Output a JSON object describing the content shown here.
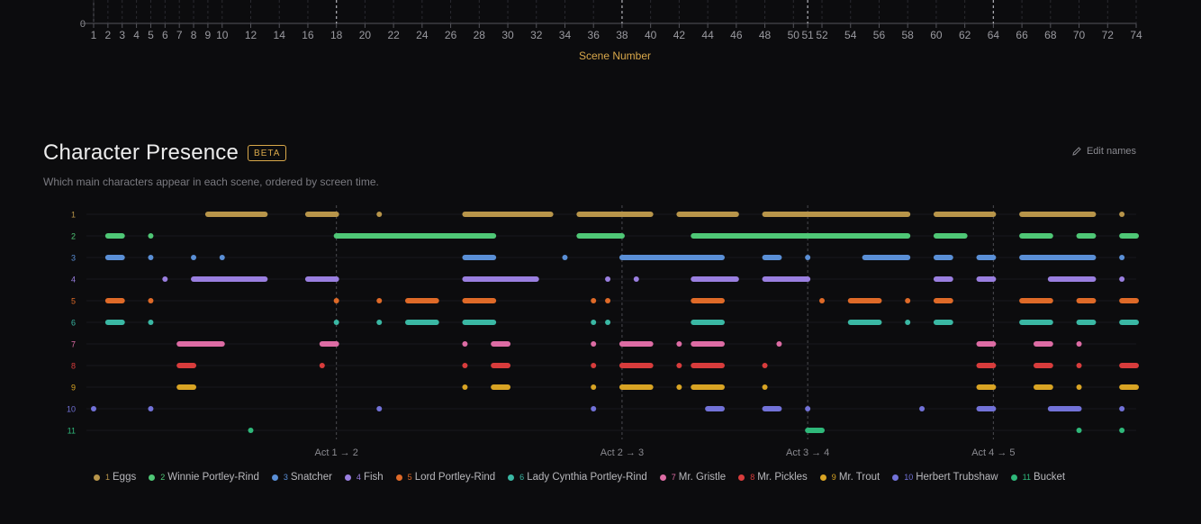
{
  "top_axis": {
    "xlabel": "Scene Number",
    "y_tick": "0",
    "ticks": [
      1,
      2,
      3,
      4,
      5,
      6,
      7,
      8,
      9,
      10,
      12,
      14,
      16,
      18,
      20,
      22,
      24,
      26,
      28,
      30,
      32,
      34,
      36,
      38,
      40,
      42,
      44,
      46,
      48,
      50,
      51,
      52,
      54,
      56,
      58,
      60,
      62,
      64,
      66,
      68,
      70,
      72,
      74
    ],
    "act_breaks": [
      18,
      38,
      51,
      64
    ]
  },
  "presence": {
    "title": "Character Presence",
    "badge": "BETA",
    "subtitle": "Which main characters appear in each scene, ordered by screen time.",
    "edit_label": "Edit names"
  },
  "chart_data": {
    "type": "scatter",
    "xlim": [
      1,
      74
    ],
    "act_breaks": [
      {
        "scene": 18,
        "label": "Act 1 → 2"
      },
      {
        "scene": 38,
        "label": "Act 2 → 3"
      },
      {
        "scene": 51,
        "label": "Act 3 → 4"
      },
      {
        "scene": 64,
        "label": "Act 4 → 5"
      }
    ],
    "series": [
      {
        "rank": 1,
        "name": "Eggs",
        "color": "#b8954a",
        "segments": [
          [
            9,
            13
          ],
          [
            16,
            18
          ],
          [
            21,
            21
          ],
          [
            27,
            33
          ],
          [
            35,
            40
          ],
          [
            42,
            46
          ],
          [
            48,
            58
          ],
          [
            60,
            64
          ],
          [
            66,
            71
          ],
          [
            73,
            73
          ]
        ]
      },
      {
        "rank": 2,
        "name": "Winnie Portley-Rind",
        "color": "#4fc776",
        "segments": [
          [
            2,
            3
          ],
          [
            5,
            5
          ],
          [
            18,
            29
          ],
          [
            35,
            38
          ],
          [
            43,
            58
          ],
          [
            60,
            62
          ],
          [
            66,
            68
          ],
          [
            70,
            71
          ],
          [
            73,
            74
          ]
        ]
      },
      {
        "rank": 3,
        "name": "Snatcher",
        "color": "#5a8fd6",
        "segments": [
          [
            2,
            3
          ],
          [
            5,
            5
          ],
          [
            8,
            8
          ],
          [
            10,
            10
          ],
          [
            27,
            29
          ],
          [
            34,
            34
          ],
          [
            38,
            45
          ],
          [
            48,
            49
          ],
          [
            51,
            51
          ],
          [
            55,
            58
          ],
          [
            60,
            61
          ],
          [
            63,
            64
          ],
          [
            66,
            71
          ],
          [
            73,
            73
          ]
        ]
      },
      {
        "rank": 4,
        "name": "Fish",
        "color": "#9a7fe0",
        "segments": [
          [
            6,
            6
          ],
          [
            8,
            13
          ],
          [
            16,
            18
          ],
          [
            27,
            32
          ],
          [
            37,
            37
          ],
          [
            39,
            39
          ],
          [
            43,
            46
          ],
          [
            48,
            51
          ],
          [
            60,
            61
          ],
          [
            63,
            64
          ],
          [
            68,
            71
          ],
          [
            73,
            73
          ]
        ]
      },
      {
        "rank": 5,
        "name": "Lord Portley-Rind",
        "color": "#df6a28",
        "segments": [
          [
            2,
            3
          ],
          [
            5,
            5
          ],
          [
            18,
            18
          ],
          [
            21,
            21
          ],
          [
            23,
            25
          ],
          [
            27,
            29
          ],
          [
            36,
            36
          ],
          [
            37,
            37
          ],
          [
            43,
            45
          ],
          [
            52,
            52
          ],
          [
            54,
            56
          ],
          [
            58,
            58
          ],
          [
            60,
            61
          ],
          [
            66,
            68
          ],
          [
            70,
            71
          ],
          [
            73,
            74
          ]
        ]
      },
      {
        "rank": 6,
        "name": "Lady Cynthia Portley-Rind",
        "color": "#3ab8a4",
        "segments": [
          [
            2,
            3
          ],
          [
            5,
            5
          ],
          [
            18,
            18
          ],
          [
            21,
            21
          ],
          [
            23,
            25
          ],
          [
            27,
            29
          ],
          [
            36,
            36
          ],
          [
            37,
            37
          ],
          [
            43,
            45
          ],
          [
            54,
            56
          ],
          [
            58,
            58
          ],
          [
            60,
            61
          ],
          [
            66,
            68
          ],
          [
            70,
            71
          ],
          [
            73,
            74
          ]
        ]
      },
      {
        "rank": 7,
        "name": "Mr. Gristle",
        "color": "#dd6ca4",
        "segments": [
          [
            7,
            10
          ],
          [
            17,
            18
          ],
          [
            27,
            27
          ],
          [
            29,
            30
          ],
          [
            36,
            36
          ],
          [
            38,
            40
          ],
          [
            42,
            42
          ],
          [
            43,
            45
          ],
          [
            49,
            49
          ],
          [
            63,
            64
          ],
          [
            67,
            68
          ],
          [
            70,
            70
          ]
        ]
      },
      {
        "rank": 8,
        "name": "Mr. Pickles",
        "color": "#d83c3c",
        "segments": [
          [
            7,
            8
          ],
          [
            17,
            17
          ],
          [
            27,
            27
          ],
          [
            29,
            30
          ],
          [
            36,
            36
          ],
          [
            38,
            40
          ],
          [
            42,
            42
          ],
          [
            43,
            45
          ],
          [
            48,
            48
          ],
          [
            63,
            64
          ],
          [
            67,
            68
          ],
          [
            70,
            70
          ],
          [
            73,
            74
          ]
        ]
      },
      {
        "rank": 9,
        "name": "Mr. Trout",
        "color": "#d9a424",
        "segments": [
          [
            7,
            8
          ],
          [
            27,
            27
          ],
          [
            29,
            30
          ],
          [
            36,
            36
          ],
          [
            38,
            40
          ],
          [
            42,
            42
          ],
          [
            43,
            45
          ],
          [
            48,
            48
          ],
          [
            63,
            64
          ],
          [
            67,
            68
          ],
          [
            70,
            70
          ],
          [
            73,
            74
          ]
        ]
      },
      {
        "rank": 10,
        "name": "Herbert Trubshaw",
        "color": "#7272d8",
        "segments": [
          [
            1,
            1
          ],
          [
            5,
            5
          ],
          [
            21,
            21
          ],
          [
            36,
            36
          ],
          [
            44,
            45
          ],
          [
            48,
            49
          ],
          [
            51,
            51
          ],
          [
            59,
            59
          ],
          [
            63,
            64
          ],
          [
            68,
            70
          ],
          [
            73,
            73
          ]
        ]
      },
      {
        "rank": 11,
        "name": "Bucket",
        "color": "#2fb87a",
        "segments": [
          [
            12,
            12
          ],
          [
            51,
            52
          ],
          [
            70,
            70
          ],
          [
            73,
            73
          ]
        ]
      }
    ]
  }
}
